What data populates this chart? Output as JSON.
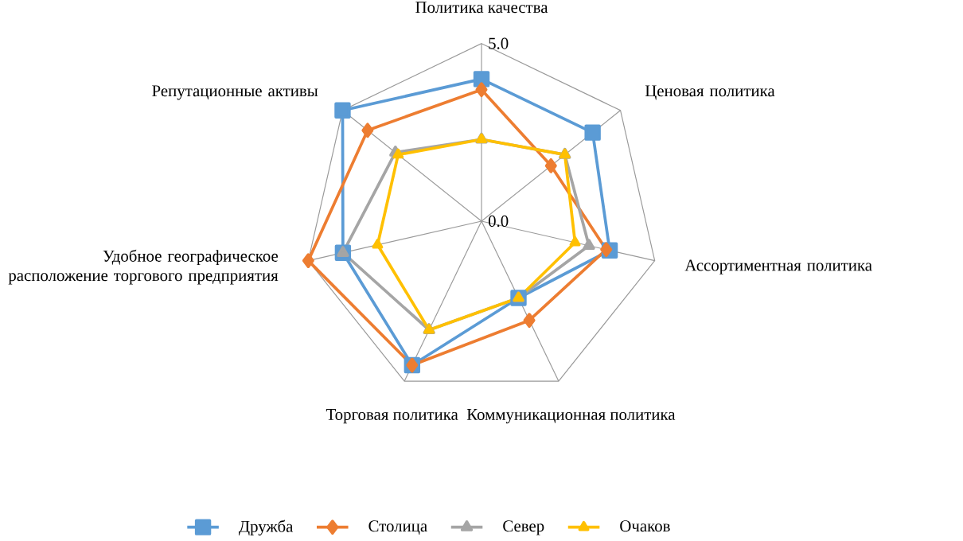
{
  "chart_data": {
    "type": "radar",
    "categories": [
      "Политика качества",
      "Ценовая политика",
      "Ассортиментная политика",
      "Коммуникационная политика",
      "Торговая политика",
      "Удобное географическое расположение торгового предприятия",
      "Репутационные активы"
    ],
    "series": [
      {
        "name": "Дружба",
        "color": "#5b9bd5",
        "marker": "square",
        "values": [
          4.0,
          4.0,
          3.7,
          2.4,
          4.5,
          4.0,
          5.0
        ]
      },
      {
        "name": "Столица",
        "color": "#ed7d31",
        "marker": "diamond",
        "values": [
          3.7,
          2.5,
          3.6,
          3.1,
          4.5,
          5.0,
          4.1
        ]
      },
      {
        "name": "Север",
        "color": "#a5a5a5",
        "marker": "triangle",
        "values": [
          2.3,
          3.0,
          3.1,
          2.4,
          3.4,
          4.0,
          3.1
        ]
      },
      {
        "name": "Очаков",
        "color": "#ffc000",
        "marker": "triangle",
        "values": [
          2.3,
          3.0,
          2.7,
          2.4,
          3.4,
          3.0,
          3.0
        ]
      }
    ],
    "ylim": [
      0,
      5
    ],
    "yticks": [
      {
        "value": 0,
        "label": "0.0"
      },
      {
        "value": 5,
        "label": "5.0"
      }
    ],
    "grid": true,
    "legend": "bottom"
  }
}
